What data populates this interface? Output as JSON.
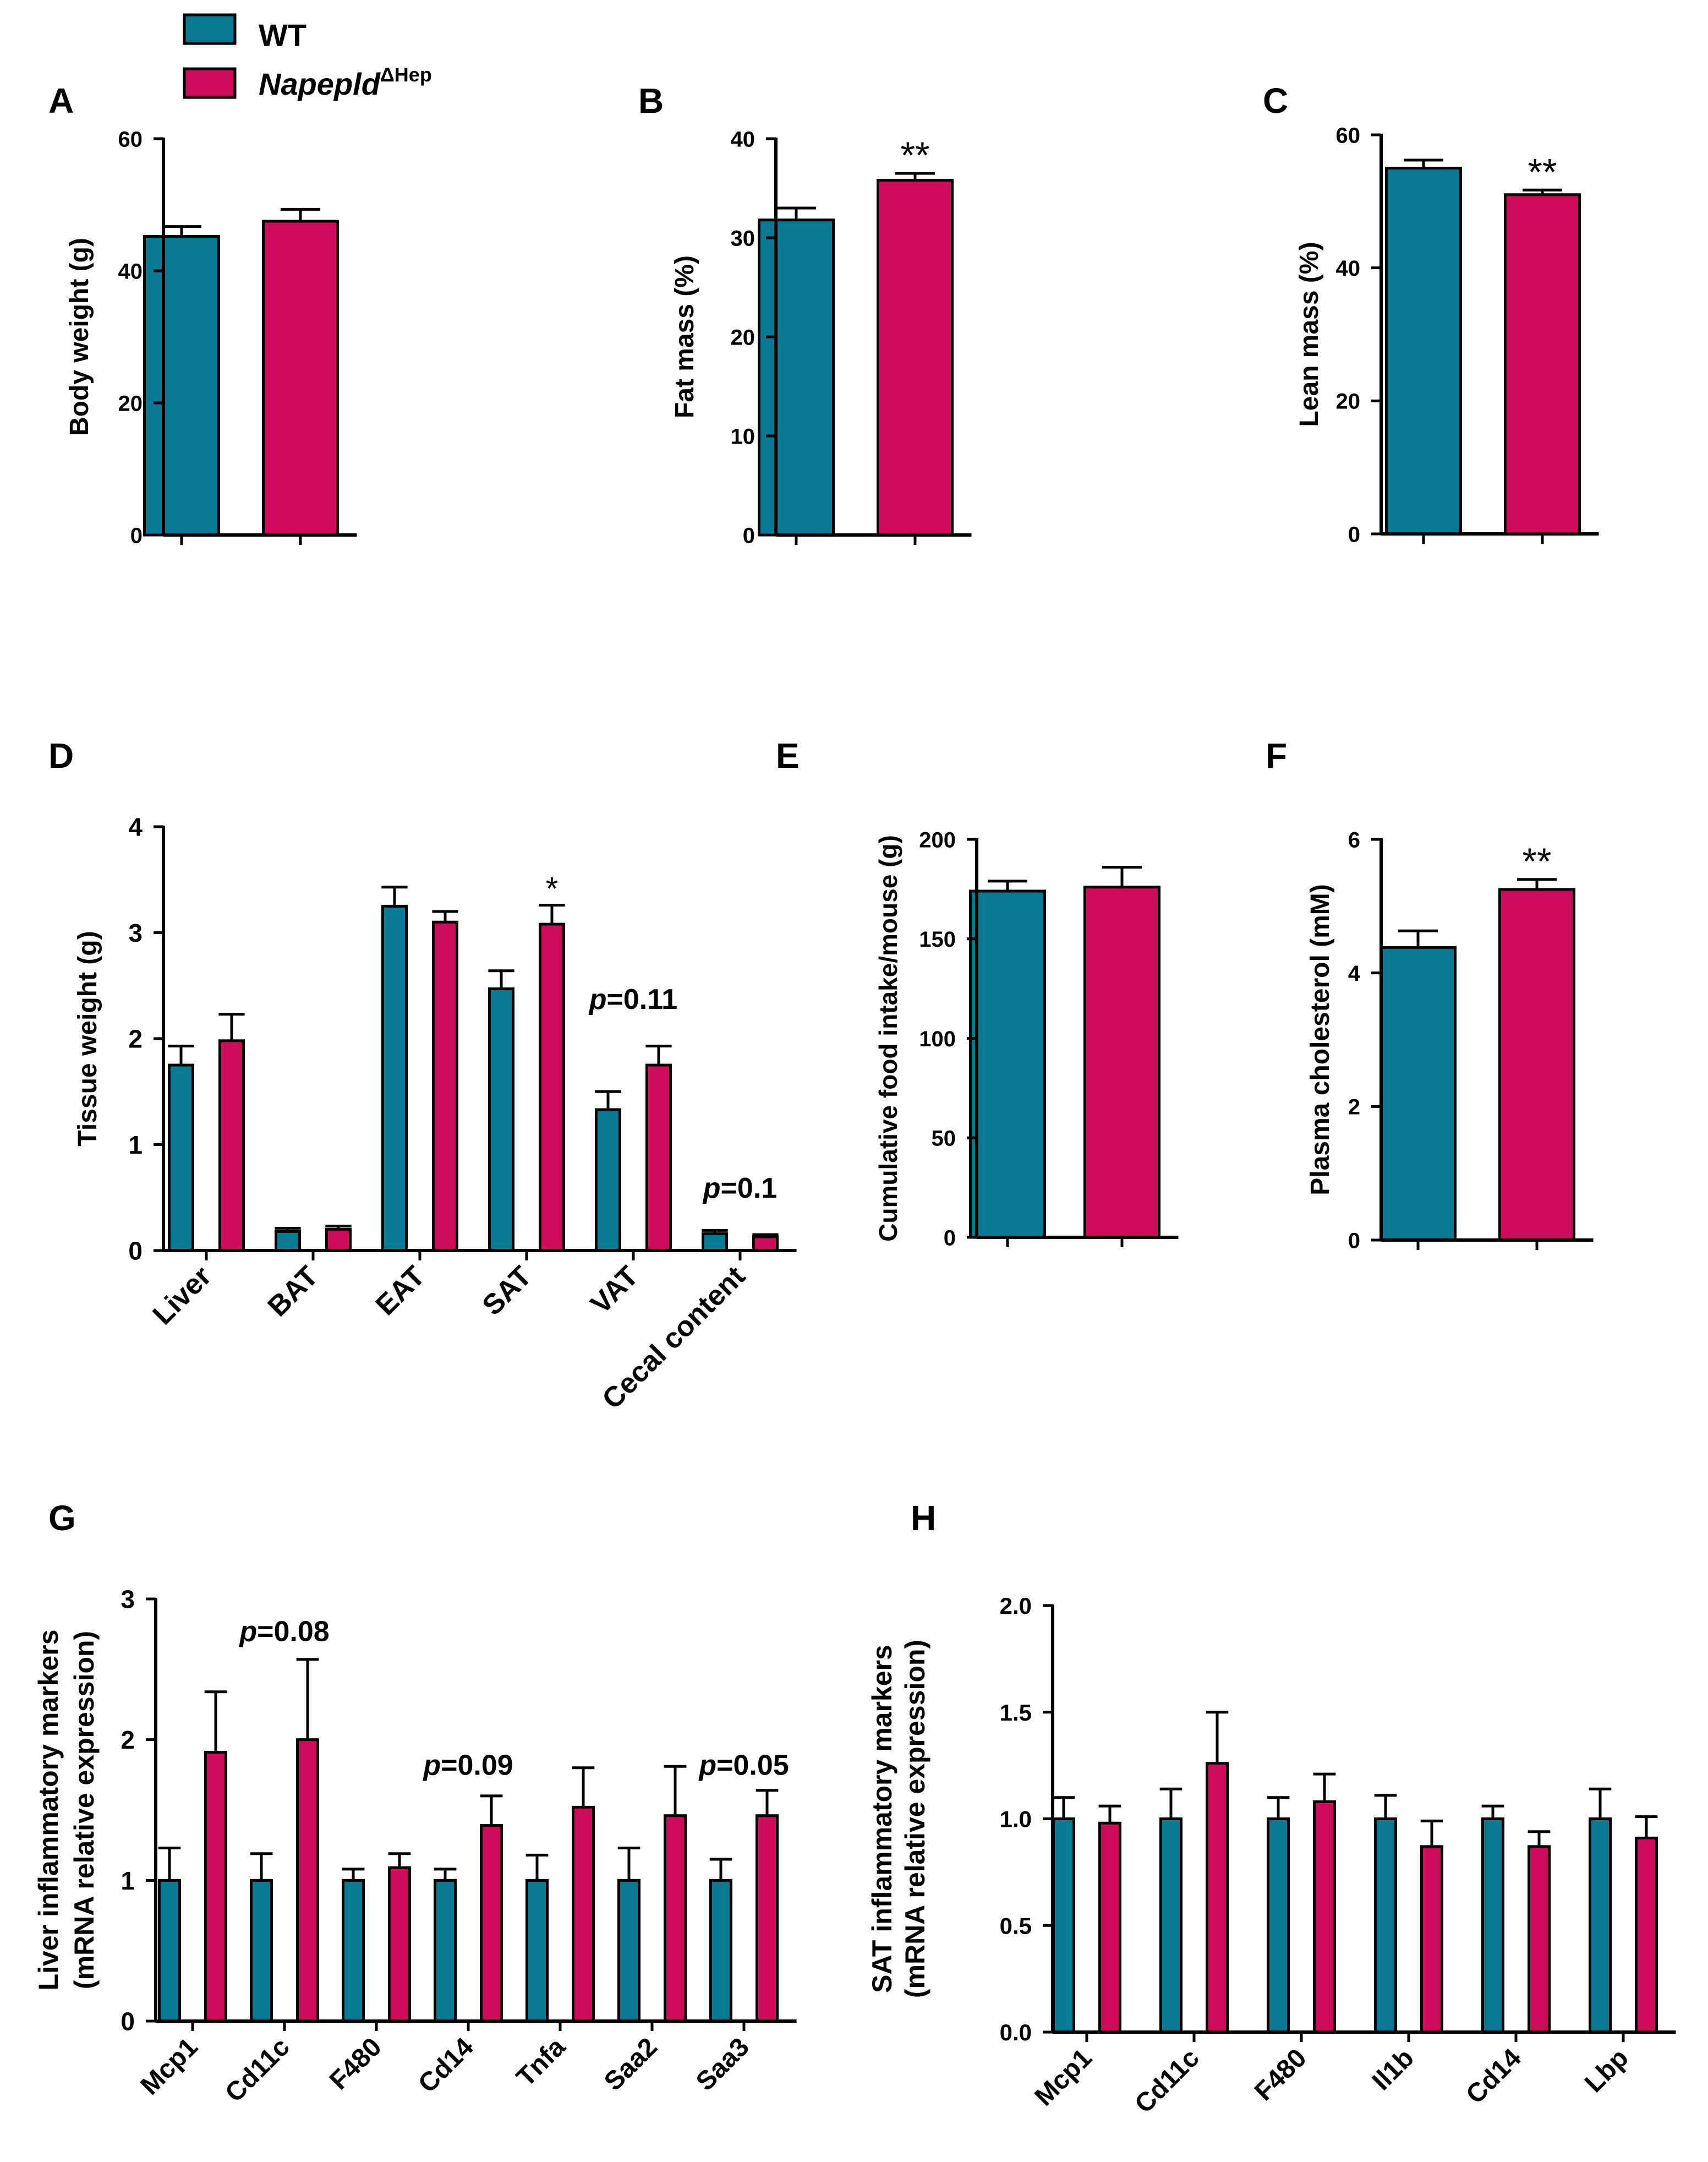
{
  "colors": {
    "wt": "#0a7994",
    "ko": "#cf0b5c",
    "axis": "#000000"
  },
  "legend": [
    {
      "label": "WT",
      "series": "wt"
    },
    {
      "label": "Napepld",
      "sup": "ΔHep",
      "series": "ko",
      "italic": true
    }
  ],
  "chart_data": [
    {
      "id": "A",
      "letter": "A",
      "type": "bar",
      "ylabel": [
        "Body weight (g)"
      ],
      "ylim": [
        0,
        60
      ],
      "ticks": [
        0,
        20,
        40,
        60
      ],
      "tick_labels": [
        "0",
        "20",
        "40",
        "60"
      ],
      "categories": [
        ""
      ],
      "series": [
        {
          "name": "WT",
          "values": [
            45.2
          ],
          "errors": [
            1.5
          ]
        },
        {
          "name": "NapepldΔHep",
          "values": [
            47.5
          ],
          "errors": [
            1.8
          ]
        }
      ],
      "annotations": []
    },
    {
      "id": "B",
      "letter": "B",
      "type": "bar",
      "ylabel": [
        "Fat mass (%)"
      ],
      "ylim": [
        0,
        40
      ],
      "ticks": [
        0,
        10,
        20,
        30,
        40
      ],
      "tick_labels": [
        "0",
        "10",
        "20",
        "30",
        "40"
      ],
      "categories": [
        ""
      ],
      "series": [
        {
          "name": "WT",
          "values": [
            31.8
          ],
          "errors": [
            1.2
          ]
        },
        {
          "name": "NapepldΔHep",
          "values": [
            35.8
          ],
          "errors": [
            0.7
          ]
        }
      ],
      "annotations": [
        {
          "text": "**",
          "series": 1,
          "cat": 0
        }
      ]
    },
    {
      "id": "C",
      "letter": "C",
      "type": "bar",
      "ylabel": [
        "Lean mass (%)"
      ],
      "ylim": [
        0,
        60
      ],
      "ticks": [
        0,
        20,
        40,
        60
      ],
      "tick_labels": [
        "0",
        "20",
        "40",
        "60"
      ],
      "categories": [
        ""
      ],
      "series": [
        {
          "name": "WT",
          "values": [
            55.0
          ],
          "errors": [
            1.2
          ]
        },
        {
          "name": "NapepldΔHep",
          "values": [
            51.0
          ],
          "errors": [
            0.7
          ]
        }
      ],
      "annotations": [
        {
          "text": "**",
          "series": 1,
          "cat": 0
        }
      ]
    },
    {
      "id": "D",
      "letter": "D",
      "type": "bar",
      "ylabel": [
        "Tissue weight (g)"
      ],
      "ylim": [
        0,
        4
      ],
      "ticks": [
        0,
        1,
        2,
        3,
        4
      ],
      "tick_labels": [
        "0",
        "1",
        "2",
        "3",
        "4"
      ],
      "categories": [
        "Liver",
        "BAT",
        "EAT",
        "SAT",
        "VAT",
        "Cecal content"
      ],
      "series": [
        {
          "name": "WT",
          "values": [
            1.75,
            0.18,
            3.25,
            2.47,
            1.33,
            0.16
          ],
          "errors": [
            0.18,
            0.03,
            0.18,
            0.17,
            0.17,
            0.03
          ]
        },
        {
          "name": "NapepldΔHep",
          "values": [
            1.98,
            0.2,
            3.1,
            3.08,
            1.75,
            0.13
          ],
          "errors": [
            0.25,
            0.03,
            0.1,
            0.18,
            0.18,
            0.02
          ]
        }
      ],
      "annotations": [
        {
          "text": "*",
          "series": 1,
          "cat": 3
        },
        {
          "text": "p=0.11",
          "pval": true,
          "cat": 4,
          "y": 2.28
        },
        {
          "text": "p=0.1",
          "pval": true,
          "cat": 5,
          "y": 0.5
        }
      ]
    },
    {
      "id": "E",
      "letter": "E",
      "type": "bar",
      "ylabel": [
        "Cumulative food intake/mouse (g)"
      ],
      "ylim": [
        0,
        200
      ],
      "ticks": [
        0,
        50,
        100,
        150,
        200
      ],
      "tick_labels": [
        "0",
        "50",
        "100",
        "150",
        "200"
      ],
      "categories": [
        ""
      ],
      "series": [
        {
          "name": "WT",
          "values": [
            174
          ],
          "errors": [
            5
          ]
        },
        {
          "name": "NapepldΔHep",
          "values": [
            176
          ],
          "errors": [
            10
          ]
        }
      ],
      "annotations": []
    },
    {
      "id": "F",
      "letter": "F",
      "type": "bar",
      "ylabel": [
        "Plasma cholesterol (mM)"
      ],
      "ylim": [
        0,
        6
      ],
      "ticks": [
        0,
        2,
        4,
        6
      ],
      "tick_labels": [
        "0",
        "2",
        "4",
        "6"
      ],
      "categories": [
        ""
      ],
      "series": [
        {
          "name": "WT",
          "values": [
            4.38
          ],
          "errors": [
            0.25
          ]
        },
        {
          "name": "NapepldΔHep",
          "values": [
            5.25
          ],
          "errors": [
            0.15
          ]
        }
      ],
      "annotations": [
        {
          "text": "**",
          "series": 1,
          "cat": 0
        }
      ]
    },
    {
      "id": "G",
      "letter": "G",
      "type": "bar",
      "ylabel": [
        "Liver inflammatory markers",
        "(mRNA relative expression)"
      ],
      "ylim": [
        0,
        3
      ],
      "ticks": [
        0,
        1,
        2,
        3
      ],
      "tick_labels": [
        "0",
        "1",
        "2",
        "3"
      ],
      "categories": [
        "Mcp1",
        "Cd11c",
        "F480",
        "Cd14",
        "Tnfa",
        "Saa2",
        "Saa3"
      ],
      "series": [
        {
          "name": "WT",
          "values": [
            1.0,
            1.0,
            1.0,
            1.0,
            1.0,
            1.0,
            1.0
          ],
          "errors": [
            0.23,
            0.19,
            0.08,
            0.08,
            0.18,
            0.23,
            0.15
          ]
        },
        {
          "name": "NapepldΔHep",
          "values": [
            1.91,
            2.0,
            1.09,
            1.39,
            1.52,
            1.46,
            1.46
          ],
          "errors": [
            0.43,
            0.57,
            0.1,
            0.21,
            0.28,
            0.35,
            0.18
          ]
        }
      ],
      "annotations": [
        {
          "text": "p=0.08",
          "pval": true,
          "cat": 1,
          "y": 2.7
        },
        {
          "text": "p=0.09",
          "pval": true,
          "cat": 3,
          "y": 1.75
        },
        {
          "text": "p=0.05",
          "pval": true,
          "cat": 6,
          "y": 1.75
        }
      ]
    },
    {
      "id": "H",
      "letter": "H",
      "type": "bar",
      "ylabel": [
        "SAT inflammatory markers",
        "(mRNA relative expression)"
      ],
      "ylim": [
        0,
        2
      ],
      "ticks": [
        0,
        0.5,
        1,
        1.5,
        2
      ],
      "tick_labels": [
        "0.0",
        "0.5",
        "1.0",
        "1.5",
        "2.0"
      ],
      "categories": [
        "Mcp1",
        "Cd11c",
        "F480",
        "Il1b",
        "Cd14",
        "Lbp"
      ],
      "series": [
        {
          "name": "WT",
          "values": [
            1.0,
            1.0,
            1.0,
            1.0,
            1.0,
            1.0
          ],
          "errors": [
            0.1,
            0.14,
            0.1,
            0.11,
            0.06,
            0.14
          ]
        },
        {
          "name": "NapepldΔHep",
          "values": [
            0.98,
            1.26,
            1.08,
            0.87,
            0.87,
            0.91
          ],
          "errors": [
            0.08,
            0.24,
            0.13,
            0.12,
            0.07,
            0.1
          ]
        }
      ],
      "annotations": []
    }
  ]
}
